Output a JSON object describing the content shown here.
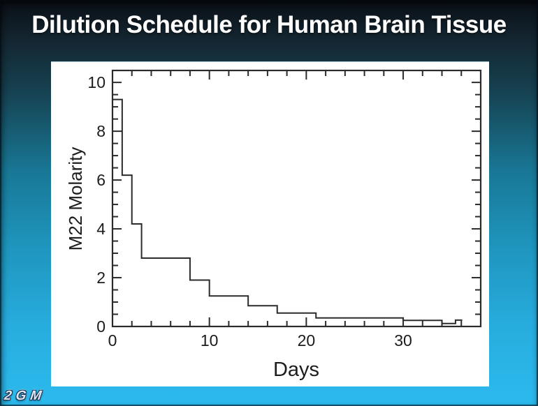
{
  "slide": {
    "title": "Dilution Schedule for Human Brain Tissue",
    "logo_text": "2GM"
  },
  "colors": {
    "background_top": "#0a0f15",
    "background_mid": "#187795",
    "background_bottom": "#2cbaee",
    "panel": "#ffffff",
    "ink": "#2b2b2b",
    "title_color": "#ffffff"
  },
  "chart_data": {
    "type": "line",
    "subtype": "step",
    "title": "",
    "xlabel": "Days",
    "ylabel": "M22 Molarity",
    "xlim": [
      0,
      38
    ],
    "ylim": [
      0,
      10.49
    ],
    "x_major_ticks": [
      0,
      10,
      20,
      30
    ],
    "x_minor_step": 2,
    "x_minor_max": 36,
    "y_major_ticks": [
      0,
      2,
      4,
      6,
      8,
      10
    ],
    "y_minor_step": 0.5,
    "grid": false,
    "legend": "none",
    "tick_direction": "in",
    "axes_box": true,
    "line_color": "#2b2b2b",
    "steps_comment": "each pair = [day level starts, molarity]; curve holds value until next day",
    "steps": [
      [
        0,
        9.3
      ],
      [
        1,
        6.2
      ],
      [
        2,
        4.2
      ],
      [
        3,
        2.8
      ],
      [
        8,
        1.9
      ],
      [
        10,
        1.25
      ],
      [
        14,
        0.85
      ],
      [
        17,
        0.55
      ],
      [
        21,
        0.35
      ],
      [
        30,
        0.25
      ],
      [
        34,
        0.12
      ],
      [
        35.4,
        0.26
      ]
    ],
    "end_day": 36.1
  }
}
